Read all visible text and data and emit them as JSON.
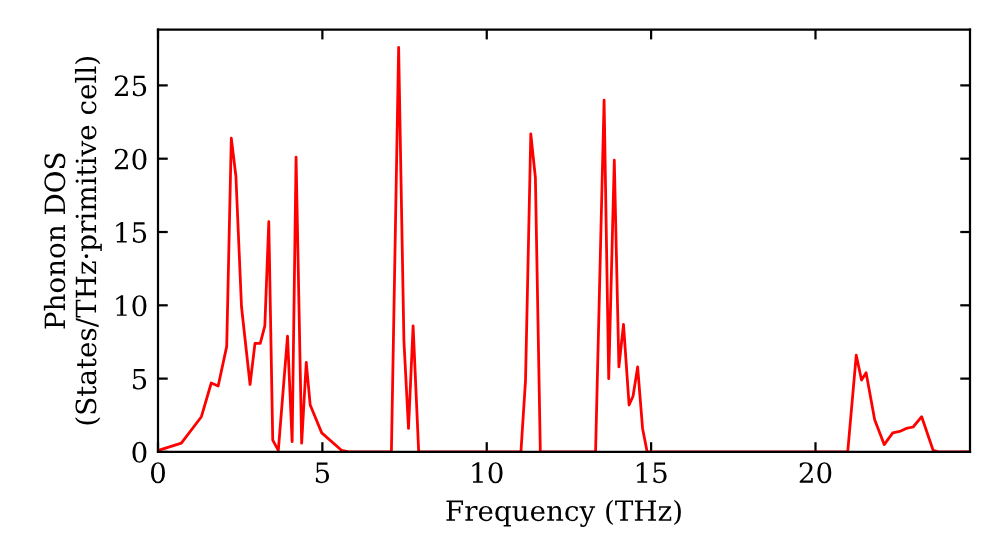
{
  "chart_data": {
    "type": "line",
    "xlabel": "Frequency (THz)",
    "ylabel": "Phonon DOS\n(States/THz·primitive cell)",
    "xlim": [
      0,
      24.7
    ],
    "ylim": [
      0,
      28.8
    ],
    "xticks": [
      0,
      5,
      10,
      15,
      20
    ],
    "yticks": [
      0,
      5,
      10,
      15,
      20,
      25
    ],
    "grid": false,
    "legend": false,
    "marker": "none",
    "line_style": "solid",
    "series": [
      {
        "color": "#ff0000",
        "x": [
          0,
          0.71,
          1.32,
          1.62,
          1.83,
          2.09,
          2.23,
          2.37,
          2.54,
          2.8,
          2.95,
          3.11,
          3.25,
          3.37,
          3.49,
          3.66,
          3.94,
          4.08,
          4.2,
          4.37,
          4.51,
          4.63,
          4.98,
          5.59,
          5.8,
          7.1,
          7.32,
          7.48,
          7.62,
          7.76,
          7.93,
          11.04,
          11.18,
          11.34,
          11.48,
          11.63,
          13.31,
          13.57,
          13.71,
          13.88,
          14.02,
          14.16,
          14.33,
          14.45,
          14.59,
          14.74,
          14.88,
          20.98,
          21.24,
          21.4,
          21.54,
          21.8,
          22.09,
          22.35,
          22.56,
          22.76,
          22.97,
          23.23,
          23.58,
          23.74,
          24.7
        ],
        "values": [
          0.1,
          0.6,
          2.4,
          4.7,
          4.5,
          7.2,
          21.4,
          18.8,
          9.9,
          4.6,
          7.4,
          7.4,
          8.6,
          15.7,
          0.8,
          0.1,
          7.9,
          0.7,
          20.1,
          0.6,
          6.1,
          3.2,
          1.3,
          0.1,
          0,
          0,
          27.6,
          7.6,
          1.6,
          8.6,
          0,
          0,
          4.9,
          21.7,
          18.7,
          0,
          0,
          24.0,
          5.0,
          19.9,
          5.8,
          8.7,
          3.2,
          3.8,
          5.8,
          1.6,
          0,
          0,
          6.6,
          4.9,
          5.4,
          2.2,
          0.5,
          1.3,
          1.4,
          1.6,
          1.7,
          2.4,
          0.1,
          0,
          0
        ]
      }
    ]
  }
}
